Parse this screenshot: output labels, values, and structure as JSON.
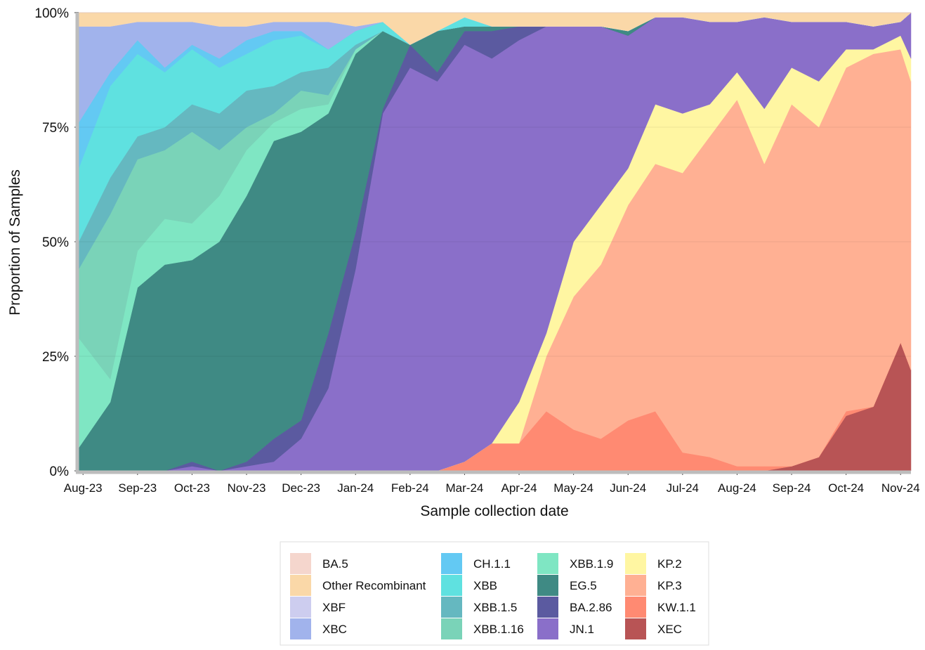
{
  "chart_data": {
    "type": "stacked_area",
    "xlabel": "Sample collection date",
    "ylabel": "Proportion of Samples",
    "x": [
      -0.08,
      0.5,
      1,
      1.5,
      2,
      2.5,
      3,
      3.5,
      4,
      4.5,
      5,
      5.5,
      6,
      6.5,
      7,
      7.5,
      8,
      8.5,
      9,
      9.5,
      10,
      10.5,
      11,
      11.5,
      12,
      12.5,
      13,
      13.5,
      14,
      14.5,
      15,
      15.19
    ],
    "xlim": [
      -0.08,
      15.19
    ],
    "xticks": [
      {
        "value": 0,
        "label": "Aug-23"
      },
      {
        "value": 1,
        "label": "Sep-23"
      },
      {
        "value": 2,
        "label": "Oct-23"
      },
      {
        "value": 3,
        "label": "Nov-23"
      },
      {
        "value": 4,
        "label": "Dec-23"
      },
      {
        "value": 5,
        "label": "Jan-24"
      },
      {
        "value": 6,
        "label": "Feb-24"
      },
      {
        "value": 7,
        "label": "Mar-24"
      },
      {
        "value": 8,
        "label": "Apr-24"
      },
      {
        "value": 9,
        "label": "May-24"
      },
      {
        "value": 10,
        "label": "Jun-24"
      },
      {
        "value": 11,
        "label": "Jul-24"
      },
      {
        "value": 12,
        "label": "Aug-24"
      },
      {
        "value": 13,
        "label": "Sep-24"
      },
      {
        "value": 14,
        "label": "Oct-24"
      },
      {
        "value": 15,
        "label": "Nov-24"
      }
    ],
    "ylim": [
      0,
      100
    ],
    "yticks": [
      {
        "value": 0,
        "label": "0%"
      },
      {
        "value": 25,
        "label": "25%"
      },
      {
        "value": 50,
        "label": "50%"
      },
      {
        "value": 75,
        "label": "75%"
      },
      {
        "value": 100,
        "label": "100%"
      }
    ],
    "grid": true,
    "legend": "bottom",
    "series": [
      {
        "name": "BA.5",
        "color": "#f5d6cd",
        "values": [
          0,
          0,
          0,
          0,
          0,
          0,
          0,
          0,
          0,
          0,
          0,
          0,
          0,
          0,
          0,
          0,
          0,
          0,
          0,
          0,
          0,
          0,
          0,
          0,
          0,
          0,
          0,
          0,
          0,
          0,
          0,
          0
        ]
      },
      {
        "name": "Other Recombinant",
        "color": "#fad8a8",
        "values": [
          3,
          3,
          2,
          2,
          2,
          3,
          3,
          2,
          2,
          2,
          3,
          2,
          7,
          4,
          1,
          3,
          3,
          3,
          3,
          3,
          4,
          1,
          1,
          2,
          2,
          1,
          2,
          2,
          2,
          3,
          2,
          0
        ]
      },
      {
        "name": "XBF",
        "color": "#cdcdef",
        "values": [
          0,
          0,
          0,
          0,
          0,
          0,
          0,
          0,
          0,
          0,
          0,
          0,
          0,
          0,
          0,
          0,
          0,
          0,
          0,
          0,
          0,
          0,
          0,
          0,
          0,
          0,
          0,
          0,
          0,
          0,
          0,
          0
        ]
      },
      {
        "name": "XBC",
        "color": "#a1b3ec",
        "values": [
          21,
          10,
          4,
          10,
          5,
          7,
          3,
          2,
          2,
          6,
          1,
          0,
          0,
          0,
          0,
          0,
          0,
          0,
          0,
          0,
          0,
          0,
          0,
          0,
          0,
          0,
          0,
          0,
          0,
          0,
          0,
          0
        ]
      },
      {
        "name": "CH.1.1",
        "color": "#63c9f3",
        "values": [
          10,
          3,
          3,
          1,
          1,
          2,
          3,
          2,
          1,
          0,
          0,
          0,
          0,
          0,
          0,
          0,
          0,
          0,
          0,
          0,
          0,
          0,
          0,
          0,
          0,
          0,
          0,
          0,
          0,
          0,
          0,
          0
        ]
      },
      {
        "name": "XBB",
        "color": "#5fe1e0",
        "values": [
          16,
          20,
          18,
          12,
          12,
          10,
          8,
          10,
          8,
          4,
          3,
          2,
          0,
          0,
          2,
          0,
          0,
          0,
          0,
          0,
          0,
          0,
          0,
          0,
          0,
          0,
          0,
          0,
          0,
          0,
          0,
          0
        ]
      },
      {
        "name": "XBB.1.5",
        "color": "#65b8c0",
        "values": [
          6,
          8,
          5,
          5,
          6,
          8,
          8,
          6,
          4,
          6,
          1,
          0,
          0,
          0,
          0,
          0,
          0,
          0,
          0,
          0,
          0,
          0,
          0,
          0,
          0,
          0,
          0,
          0,
          0,
          0,
          0,
          0
        ]
      },
      {
        "name": "XBB.1.16",
        "color": "#7ad3b8",
        "values": [
          15,
          36,
          20,
          15,
          20,
          10,
          5,
          2,
          4,
          2,
          0,
          0,
          0,
          0,
          0,
          0,
          0,
          0,
          0,
          0,
          0,
          0,
          0,
          0,
          0,
          0,
          0,
          0,
          0,
          0,
          0,
          0
        ]
      },
      {
        "name": "XBB.1.9",
        "color": "#7fe6c3",
        "values": [
          24,
          5,
          8,
          10,
          8,
          10,
          10,
          4,
          5,
          2,
          1,
          0,
          0,
          0,
          0,
          0,
          0,
          0,
          0,
          0,
          0,
          0,
          0,
          0,
          0,
          0,
          0,
          0,
          0,
          0,
          0,
          0
        ]
      },
      {
        "name": "EG.5",
        "color": "#3f8a84",
        "values": [
          5,
          15,
          40,
          45,
          44,
          50,
          58,
          65,
          63,
          48,
          39,
          17,
          0,
          9,
          1,
          1,
          0,
          0,
          0,
          0,
          1,
          0,
          0,
          0,
          0,
          0,
          0,
          0,
          0,
          0,
          0,
          0
        ]
      },
      {
        "name": "BA.2.86",
        "color": "#5b5aa0",
        "values": [
          0,
          0,
          0,
          0,
          1,
          0,
          1,
          5,
          4,
          12,
          8,
          1,
          5,
          2,
          3,
          6,
          3,
          0,
          0,
          0,
          0,
          0,
          0,
          0,
          0,
          0,
          0,
          0,
          0,
          0,
          0,
          0
        ]
      },
      {
        "name": "JN.1",
        "color": "#8a6fc9",
        "values": [
          0,
          0,
          0,
          0,
          1,
          0,
          1,
          2,
          7,
          18,
          44,
          78,
          88,
          85,
          91,
          84,
          79,
          67,
          47,
          39,
          29,
          19,
          21,
          18,
          11,
          20,
          10,
          13,
          6,
          5,
          3,
          10
        ]
      },
      {
        "name": "KP.2",
        "color": "#fff6a2",
        "values": [
          0,
          0,
          0,
          0,
          0,
          0,
          0,
          0,
          0,
          0,
          0,
          0,
          0,
          0,
          0,
          0,
          9,
          5,
          12,
          13,
          8,
          13,
          13,
          7,
          6,
          12,
          8,
          10,
          4,
          1,
          3,
          5
        ]
      },
      {
        "name": "KP.3",
        "color": "#ffb093",
        "values": [
          0,
          0,
          0,
          0,
          0,
          0,
          0,
          0,
          0,
          0,
          0,
          0,
          0,
          0,
          0,
          0,
          0,
          12,
          29,
          38,
          47,
          54,
          61,
          70,
          80,
          66,
          79,
          72,
          75,
          77,
          64,
          63
        ]
      },
      {
        "name": "KW.1.1",
        "color": "#ff8a72",
        "values": [
          0,
          0,
          0,
          0,
          0,
          0,
          0,
          0,
          0,
          0,
          0,
          0,
          0,
          0,
          2,
          6,
          6,
          13,
          9,
          7,
          11,
          13,
          4,
          3,
          1,
          1,
          0,
          0,
          1,
          0,
          0,
          0
        ]
      },
      {
        "name": "XEC",
        "color": "#b85455",
        "values": [
          0,
          0,
          0,
          0,
          0,
          0,
          0,
          0,
          0,
          0,
          0,
          0,
          0,
          0,
          0,
          0,
          0,
          0,
          0,
          0,
          0,
          0,
          0,
          0,
          0,
          0,
          1,
          3,
          12,
          14,
          28,
          22
        ]
      }
    ]
  }
}
